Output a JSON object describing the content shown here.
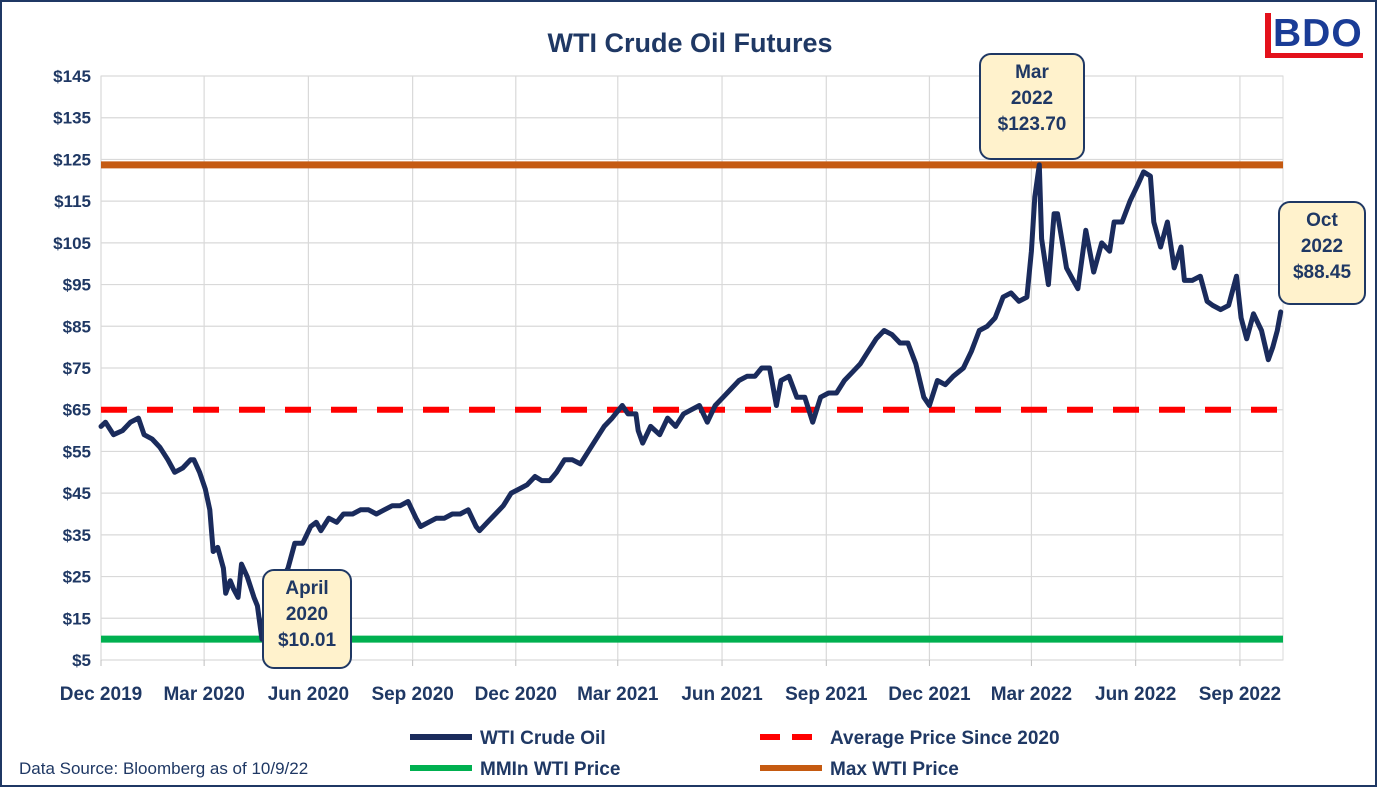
{
  "brand": {
    "logo_text": "BDO",
    "logo_color": "#1a3c96",
    "logo_accent": "#e3111b"
  },
  "source_note": "Data Source: Bloomberg as of 10/9/22",
  "callouts": [
    {
      "line1": "April",
      "line2": "2020",
      "line3": "$10.01"
    },
    {
      "line1": "Mar",
      "line2": "2022",
      "line3": "$123.70"
    },
    {
      "line1": "Oct",
      "line2": "2022",
      "line3": "$88.45"
    }
  ],
  "chart_data": {
    "type": "line",
    "title": "WTI Crude Oil Futures",
    "xlabel": "",
    "ylabel": "",
    "ylim": [
      5,
      145
    ],
    "yticks": [
      5,
      15,
      25,
      35,
      45,
      55,
      65,
      75,
      85,
      95,
      105,
      115,
      125,
      135,
      145
    ],
    "ytick_labels": [
      "$5",
      "$15",
      "$25",
      "$35",
      "$45",
      "$55",
      "$65",
      "$75",
      "$85",
      "$95",
      "$105",
      "$115",
      "$125",
      "$135",
      "$145"
    ],
    "xlim": [
      "2019-12-01",
      "2022-10-09"
    ],
    "xtick_labels": [
      "Dec 2019",
      "Mar 2020",
      "Jun 2020",
      "Sep 2020",
      "Dec 2020",
      "Mar 2021",
      "Jun 2021",
      "Sep 2021",
      "Dec 2021",
      "Mar 2022",
      "Jun 2022",
      "Sep 2022"
    ],
    "xtick_dates": [
      "2019-12-01",
      "2020-03-01",
      "2020-06-01",
      "2020-09-01",
      "2020-12-01",
      "2021-03-01",
      "2021-06-01",
      "2021-09-01",
      "2021-12-01",
      "2022-03-01",
      "2022-06-01",
      "2022-09-01"
    ],
    "grid": true,
    "legend_position": "bottom",
    "series": [
      {
        "name": "WTI Crude Oil",
        "color": "#1a2b5c",
        "style": "solid",
        "points": [
          [
            "2019-12-01",
            61
          ],
          [
            "2019-12-05",
            62
          ],
          [
            "2019-12-12",
            59
          ],
          [
            "2019-12-20",
            60
          ],
          [
            "2019-12-27",
            62
          ],
          [
            "2020-01-03",
            63
          ],
          [
            "2020-01-08",
            59
          ],
          [
            "2020-01-15",
            58
          ],
          [
            "2020-01-22",
            56
          ],
          [
            "2020-01-29",
            53
          ],
          [
            "2020-02-04",
            50
          ],
          [
            "2020-02-11",
            51
          ],
          [
            "2020-02-18",
            53
          ],
          [
            "2020-02-21",
            53
          ],
          [
            "2020-02-26",
            50
          ],
          [
            "2020-03-02",
            46
          ],
          [
            "2020-03-06",
            41
          ],
          [
            "2020-03-09",
            31
          ],
          [
            "2020-03-13",
            32
          ],
          [
            "2020-03-18",
            27
          ],
          [
            "2020-03-20",
            21
          ],
          [
            "2020-03-24",
            24
          ],
          [
            "2020-03-27",
            22
          ],
          [
            "2020-03-31",
            20
          ],
          [
            "2020-04-03",
            28
          ],
          [
            "2020-04-08",
            25
          ],
          [
            "2020-04-14",
            20
          ],
          [
            "2020-04-17",
            18
          ],
          [
            "2020-04-20",
            12
          ],
          [
            "2020-04-21",
            10.01
          ],
          [
            "2020-04-24",
            17
          ],
          [
            "2020-04-28",
            12
          ],
          [
            "2020-05-04",
            20
          ],
          [
            "2020-05-08",
            24
          ],
          [
            "2020-05-14",
            27
          ],
          [
            "2020-05-20",
            33
          ],
          [
            "2020-05-27",
            33
          ],
          [
            "2020-06-03",
            37
          ],
          [
            "2020-06-08",
            38
          ],
          [
            "2020-06-12",
            36
          ],
          [
            "2020-06-19",
            39
          ],
          [
            "2020-06-26",
            38
          ],
          [
            "2020-07-02",
            40
          ],
          [
            "2020-07-10",
            40
          ],
          [
            "2020-07-17",
            41
          ],
          [
            "2020-07-24",
            41
          ],
          [
            "2020-07-31",
            40
          ],
          [
            "2020-08-07",
            41
          ],
          [
            "2020-08-14",
            42
          ],
          [
            "2020-08-21",
            42
          ],
          [
            "2020-08-28",
            43
          ],
          [
            "2020-09-04",
            39
          ],
          [
            "2020-09-08",
            37
          ],
          [
            "2020-09-15",
            38
          ],
          [
            "2020-09-22",
            39
          ],
          [
            "2020-09-29",
            39
          ],
          [
            "2020-10-06",
            40
          ],
          [
            "2020-10-13",
            40
          ],
          [
            "2020-10-20",
            41
          ],
          [
            "2020-10-27",
            37
          ],
          [
            "2020-10-30",
            36
          ],
          [
            "2020-11-06",
            38
          ],
          [
            "2020-11-13",
            40
          ],
          [
            "2020-11-20",
            42
          ],
          [
            "2020-11-27",
            45
          ],
          [
            "2020-12-04",
            46
          ],
          [
            "2020-12-11",
            47
          ],
          [
            "2020-12-18",
            49
          ],
          [
            "2020-12-24",
            48
          ],
          [
            "2020-12-31",
            48
          ],
          [
            "2021-01-06",
            50
          ],
          [
            "2021-01-13",
            53
          ],
          [
            "2021-01-20",
            53
          ],
          [
            "2021-01-27",
            52
          ],
          [
            "2021-02-03",
            55
          ],
          [
            "2021-02-10",
            58
          ],
          [
            "2021-02-17",
            61
          ],
          [
            "2021-02-24",
            63
          ],
          [
            "2021-03-05",
            66
          ],
          [
            "2021-03-10",
            64
          ],
          [
            "2021-03-17",
            64
          ],
          [
            "2021-03-19",
            60
          ],
          [
            "2021-03-23",
            57
          ],
          [
            "2021-03-30",
            61
          ],
          [
            "2021-04-07",
            59
          ],
          [
            "2021-04-14",
            63
          ],
          [
            "2021-04-21",
            61
          ],
          [
            "2021-04-28",
            64
          ],
          [
            "2021-05-05",
            65
          ],
          [
            "2021-05-12",
            66
          ],
          [
            "2021-05-19",
            62
          ],
          [
            "2021-05-26",
            66
          ],
          [
            "2021-06-02",
            68
          ],
          [
            "2021-06-09",
            70
          ],
          [
            "2021-06-16",
            72
          ],
          [
            "2021-06-23",
            73
          ],
          [
            "2021-06-30",
            73
          ],
          [
            "2021-07-06",
            75
          ],
          [
            "2021-07-13",
            75
          ],
          [
            "2021-07-19",
            66
          ],
          [
            "2021-07-23",
            72
          ],
          [
            "2021-07-30",
            73
          ],
          [
            "2021-08-06",
            68
          ],
          [
            "2021-08-13",
            68
          ],
          [
            "2021-08-20",
            62
          ],
          [
            "2021-08-27",
            68
          ],
          [
            "2021-09-03",
            69
          ],
          [
            "2021-09-10",
            69
          ],
          [
            "2021-09-17",
            72
          ],
          [
            "2021-09-24",
            74
          ],
          [
            "2021-10-01",
            76
          ],
          [
            "2021-10-08",
            79
          ],
          [
            "2021-10-15",
            82
          ],
          [
            "2021-10-22",
            84
          ],
          [
            "2021-10-29",
            83
          ],
          [
            "2021-11-05",
            81
          ],
          [
            "2021-11-12",
            81
          ],
          [
            "2021-11-19",
            76
          ],
          [
            "2021-11-26",
            68
          ],
          [
            "2021-12-01",
            66
          ],
          [
            "2021-12-08",
            72
          ],
          [
            "2021-12-15",
            71
          ],
          [
            "2021-12-22",
            73
          ],
          [
            "2021-12-31",
            75
          ],
          [
            "2022-01-07",
            79
          ],
          [
            "2022-01-14",
            84
          ],
          [
            "2022-01-21",
            85
          ],
          [
            "2022-01-28",
            87
          ],
          [
            "2022-02-04",
            92
          ],
          [
            "2022-02-11",
            93
          ],
          [
            "2022-02-18",
            91
          ],
          [
            "2022-02-25",
            92
          ],
          [
            "2022-03-01",
            103
          ],
          [
            "2022-03-04",
            116
          ],
          [
            "2022-03-08",
            123.7
          ],
          [
            "2022-03-10",
            106
          ],
          [
            "2022-03-16",
            95
          ],
          [
            "2022-03-21",
            112
          ],
          [
            "2022-03-24",
            112
          ],
          [
            "2022-03-29",
            104
          ],
          [
            "2022-04-01",
            99
          ],
          [
            "2022-04-07",
            96
          ],
          [
            "2022-04-11",
            94
          ],
          [
            "2022-04-18",
            108
          ],
          [
            "2022-04-25",
            98
          ],
          [
            "2022-05-02",
            105
          ],
          [
            "2022-05-09",
            103
          ],
          [
            "2022-05-13",
            110
          ],
          [
            "2022-05-20",
            110
          ],
          [
            "2022-05-27",
            115
          ],
          [
            "2022-06-03",
            119
          ],
          [
            "2022-06-08",
            122
          ],
          [
            "2022-06-14",
            121
          ],
          [
            "2022-06-17",
            110
          ],
          [
            "2022-06-23",
            104
          ],
          [
            "2022-06-29",
            110
          ],
          [
            "2022-07-05",
            99
          ],
          [
            "2022-07-11",
            104
          ],
          [
            "2022-07-14",
            96
          ],
          [
            "2022-07-21",
            96
          ],
          [
            "2022-07-28",
            97
          ],
          [
            "2022-08-03",
            91
          ],
          [
            "2022-08-08",
            90
          ],
          [
            "2022-08-15",
            89
          ],
          [
            "2022-08-22",
            90
          ],
          [
            "2022-08-29",
            97
          ],
          [
            "2022-09-02",
            87
          ],
          [
            "2022-09-07",
            82
          ],
          [
            "2022-09-13",
            88
          ],
          [
            "2022-09-20",
            84
          ],
          [
            "2022-09-26",
            77
          ],
          [
            "2022-09-30",
            80
          ],
          [
            "2022-10-04",
            84
          ],
          [
            "2022-10-07",
            88.45
          ]
        ]
      },
      {
        "name": "Average Price Since 2020",
        "color": "#ff0000",
        "style": "dashed",
        "value": 65
      },
      {
        "name": "MMIn WTI Price",
        "color": "#00b050",
        "style": "solid",
        "value": 10.01
      },
      {
        "name": "Max WTI Price",
        "color": "#c55a11",
        "style": "solid",
        "value": 123.7
      }
    ]
  }
}
